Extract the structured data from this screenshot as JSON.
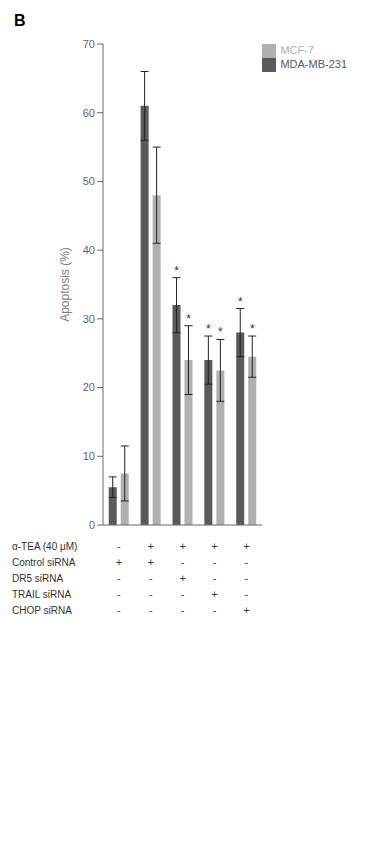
{
  "chart_data": {
    "type": "bar",
    "title": "B",
    "ylabel": "Apoptosis (%)",
    "categories": [
      null,
      null,
      null,
      null,
      null
    ],
    "series": [
      {
        "name": "MDA-MB-231",
        "color": "#5a5a5a",
        "values": [
          5.5,
          61.0,
          32.0,
          24.0,
          28.0
        ],
        "errors": [
          1.5,
          5.0,
          4.0,
          3.5,
          3.5
        ],
        "annotations": [
          null,
          null,
          "*",
          "*",
          "*"
        ]
      },
      {
        "name": "MCF-7",
        "color": "#b0b0b0",
        "values": [
          7.5,
          48.0,
          24.0,
          22.5,
          24.5
        ],
        "errors": [
          4.0,
          7.0,
          5.0,
          4.5,
          3.0
        ],
        "annotations": [
          null,
          null,
          "*",
          "*",
          "*"
        ]
      }
    ],
    "ylim": [
      0,
      70
    ],
    "yticks": [
      0,
      10,
      20,
      30,
      40,
      50,
      60,
      70
    ],
    "grid": false,
    "legend": "upper right",
    "table_rows": [
      "α-TEA (40 μM)",
      "Control siRNA",
      "DR5 siRNA",
      "TRAIL siRNA",
      "CHOP siRNA"
    ],
    "table_data": [
      [
        "-",
        "+",
        "+",
        "+",
        "+"
      ],
      [
        "+",
        "+",
        "-",
        "-",
        "-"
      ],
      [
        "-",
        "-",
        "+",
        "-",
        "-"
      ],
      [
        "-",
        "-",
        "-",
        "+",
        "-"
      ],
      [
        "-",
        "-",
        "-",
        "-",
        "+"
      ]
    ]
  }
}
